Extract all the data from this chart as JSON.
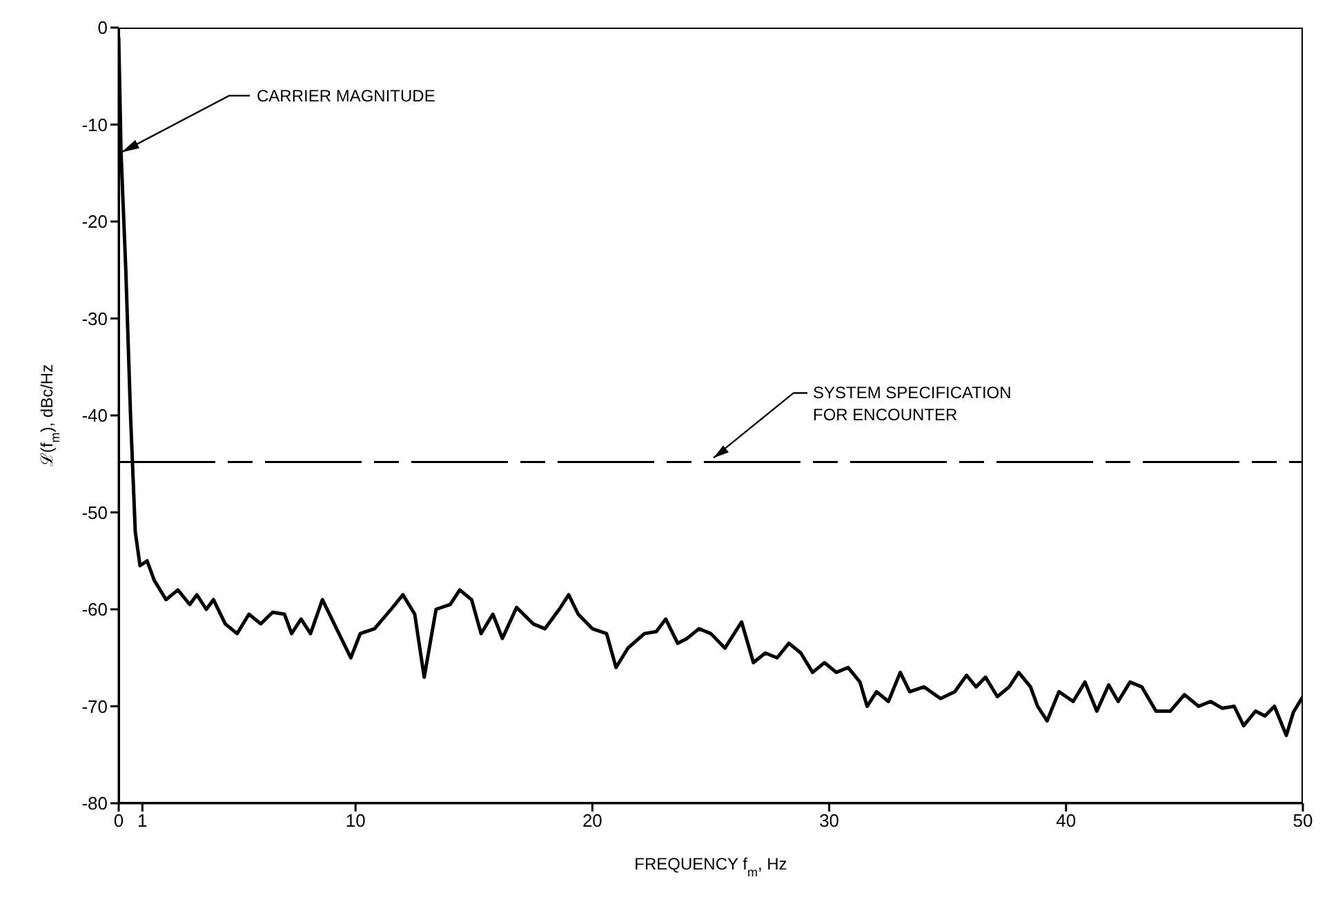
{
  "chart_data": {
    "type": "line",
    "xlabel": "FREQUENCY f$_{m}$, Hz",
    "ylabel": "ℒ(f$_{m}$), dBc/Hz",
    "xlim": [
      0,
      50
    ],
    "xticks": [
      0,
      1,
      10,
      20,
      30,
      40,
      50
    ],
    "ylim": [
      -80,
      0
    ],
    "yticks": [
      0,
      -10,
      -20,
      -30,
      -40,
      -50,
      -60,
      -70,
      -80
    ],
    "grid": false,
    "legend": false,
    "marker": "none",
    "line_style": "solid",
    "x": [
      0,
      0.1,
      0.3,
      0.5,
      0.7,
      0.9,
      1.2,
      1.5,
      2,
      2.5,
      3,
      3.3,
      3.7,
      4,
      4.5,
      5,
      5.5,
      6,
      6.5,
      7,
      7.3,
      7.7,
      8.1,
      8.6,
      9.2,
      9.8,
      10.2,
      10.8,
      11.5,
      12,
      12.5,
      12.9,
      13.4,
      14,
      14.4,
      14.9,
      15.3,
      15.8,
      16.2,
      16.8,
      17.5,
      18,
      18.6,
      19,
      19.4,
      20,
      20.6,
      21,
      21.5,
      22.2,
      22.7,
      23.1,
      23.6,
      24,
      24.5,
      25,
      25.6,
      26.3,
      26.8,
      27.3,
      27.8,
      28.3,
      28.8,
      29.3,
      29.8,
      30.3,
      30.8,
      31.3,
      31.6,
      32,
      32.5,
      33,
      33.4,
      34,
      34.7,
      35.3,
      35.8,
      36.2,
      36.6,
      37.1,
      37.6,
      38,
      38.5,
      38.8,
      39.2,
      39.7,
      40.3,
      40.8,
      41.3,
      41.8,
      42.2,
      42.7,
      43.2,
      43.8,
      44.4,
      45,
      45.6,
      46.1,
      46.6,
      47.1,
      47.5,
      48,
      48.4,
      48.8,
      49.3,
      49.6,
      50
    ],
    "series": [
      {
        "color": "#000000",
        "values": [
          -1,
          -13,
          -25,
          -40,
          -52,
          -55.5,
          -55,
          -57,
          -59,
          -58,
          -59.5,
          -58.5,
          -60,
          -59,
          -61.5,
          -62.5,
          -60.5,
          -61.5,
          -60.3,
          -60.5,
          -62.5,
          -61,
          -62.5,
          -59,
          -62,
          -65,
          -62.5,
          -62,
          -60,
          -58.5,
          -60.5,
          -67,
          -60,
          -59.5,
          -58,
          -59,
          -62.5,
          -60.5,
          -63,
          -59.8,
          -61.5,
          -62,
          -60,
          -58.5,
          -60.5,
          -62,
          -62.5,
          -66,
          -64,
          -62.5,
          -62.3,
          -61,
          -63.5,
          -63,
          -62,
          -62.5,
          -64,
          -61.3,
          -65.5,
          -64.5,
          -65,
          -63.5,
          -64.5,
          -66.5,
          -65.5,
          -66.5,
          -66,
          -67.5,
          -70,
          -68.5,
          -69.5,
          -66.5,
          -68.5,
          -68,
          -69.2,
          -68.5,
          -66.8,
          -68,
          -67,
          -69,
          -68,
          -66.5,
          -68,
          -70,
          -71.5,
          -68.5,
          -69.5,
          -67.5,
          -70.5,
          -67.8,
          -69.5,
          -67.5,
          -68,
          -70.5,
          -70.5,
          -68.8,
          -70,
          -69.5,
          -70.2,
          -70,
          -72,
          -70.5,
          -71,
          -70,
          -73,
          -70.6,
          -69
        ]
      }
    ],
    "ref_lines": [
      {
        "axis": "y",
        "value": -44.8,
        "color": "#000000",
        "line_style": "dashed"
      }
    ],
    "annotations": [
      {
        "text": "CARRIER MAGNITUDE",
        "x": 0,
        "y": -13
      },
      {
        "text": "SYSTEM SPECIFICATION FOR ENCOUNTER",
        "x": 25,
        "y": -44.8
      }
    ]
  }
}
